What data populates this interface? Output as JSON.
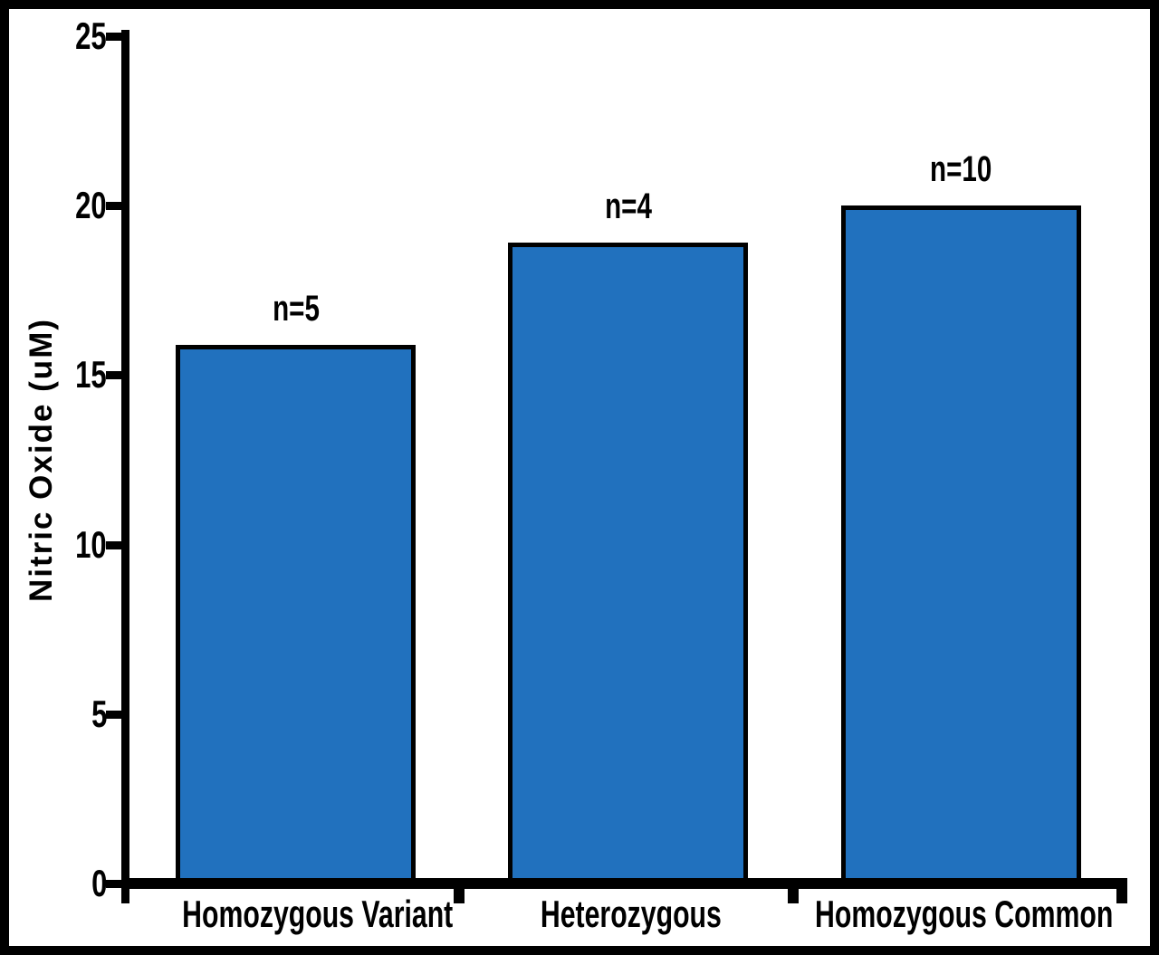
{
  "chart_data": {
    "type": "bar",
    "title": "",
    "xlabel": "",
    "ylabel": "Nitric Oxide (uM)",
    "categories": [
      "Homozygous Variant",
      "Heterozygous",
      "Homozygous Common"
    ],
    "values": [
      15.9,
      18.9,
      20.0
    ],
    "bar_labels": [
      "n=5",
      "n=4",
      "n=10"
    ],
    "yticks": [
      0,
      5,
      10,
      15,
      20,
      25
    ],
    "ylim": [
      0,
      25
    ],
    "grid": false,
    "legend": "none",
    "bar_color": "#2171BE",
    "bar_border_color": "#000000",
    "axis_color": "#000000",
    "background_color": "#FFFFFF"
  }
}
